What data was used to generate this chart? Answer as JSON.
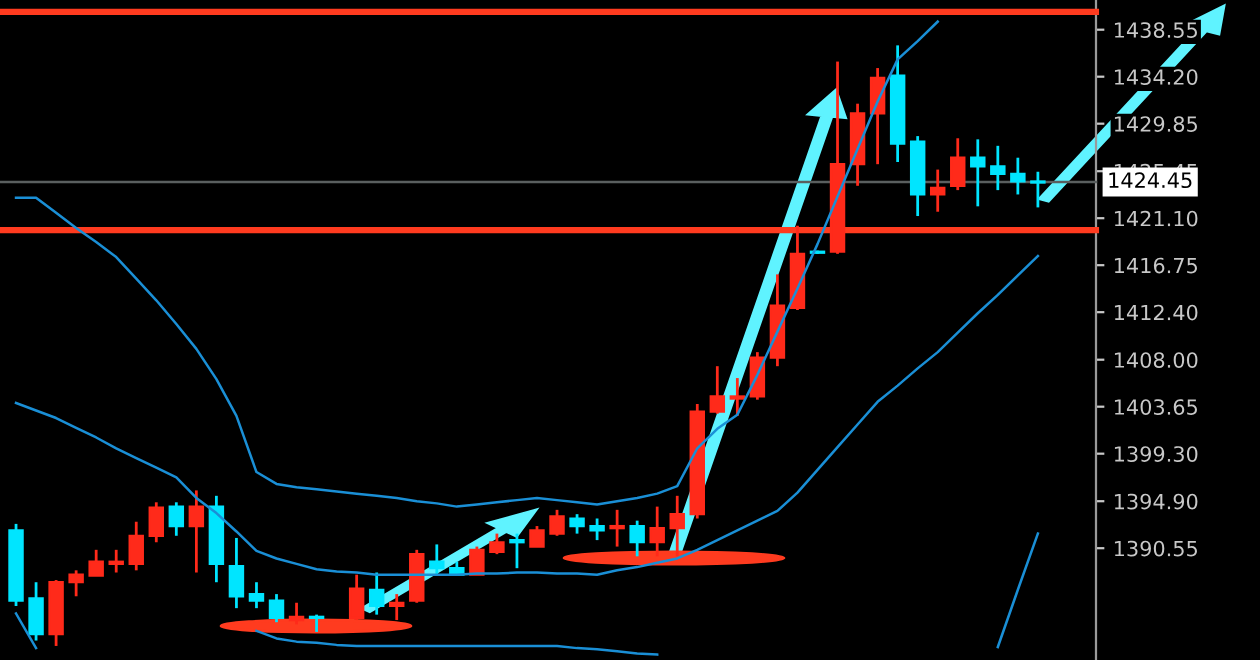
{
  "chart_data": {
    "type": "candlestick",
    "categories": [
      null,
      null,
      null,
      null,
      null,
      null,
      null,
      null,
      null,
      null,
      null,
      null,
      null,
      null,
      null,
      null,
      null,
      null,
      null,
      null,
      null,
      null,
      null,
      null,
      null,
      null,
      null,
      null,
      null,
      null,
      null,
      null,
      null,
      null,
      null,
      null,
      null,
      null,
      null,
      null,
      null,
      null,
      null,
      null,
      null,
      null,
      null,
      null,
      null,
      null,
      null,
      null
    ],
    "ohlc": [
      [
        1392.2,
        1392.8,
        1385.2,
        1385.7
      ],
      [
        1385.9,
        1387.4,
        1382.0,
        1382.6
      ],
      [
        1382.6,
        1387.6,
        1381.5,
        1387.4
      ],
      [
        1387.4,
        1388.5,
        1386.1,
        1388.1
      ],
      [
        1388.0,
        1390.4,
        1388.0,
        1389.3
      ],
      [
        1389.1,
        1390.4,
        1388.3,
        1389.3
      ],
      [
        1389.1,
        1393.0,
        1388.5,
        1391.7
      ],
      [
        1391.7,
        1394.8,
        1391.1,
        1394.3
      ],
      [
        1394.4,
        1394.8,
        1391.7,
        1392.6
      ],
      [
        1392.6,
        1395.9,
        1388.3,
        1394.4
      ],
      [
        1394.4,
        1395.4,
        1387.4,
        1389.1
      ],
      [
        1388.9,
        1391.5,
        1385.0,
        1386.1
      ],
      [
        1386.3,
        1387.4,
        1385.0,
        1385.7
      ],
      [
        1385.7,
        1386.3,
        1383.7,
        1384.1
      ],
      [
        1383.9,
        1385.5,
        1383.5,
        1384.2
      ],
      [
        1384.2,
        1384.4,
        1382.8,
        1384.1
      ],
      null,
      [
        1384.1,
        1388.1,
        1383.9,
        1386.8
      ],
      [
        1386.7,
        1388.3,
        1384.4,
        1385.2
      ],
      [
        1385.2,
        1386.3,
        1383.9,
        1385.5
      ],
      [
        1385.7,
        1390.4,
        1385.5,
        1390.0
      ],
      [
        1389.3,
        1390.9,
        1388.0,
        1388.7
      ],
      [
        1388.7,
        1389.3,
        1388.1,
        1388.1
      ],
      [
        1388.1,
        1390.7,
        1388.1,
        1390.4
      ],
      [
        1390.2,
        1391.9,
        1390.0,
        1391.1
      ],
      [
        1391.3,
        1391.9,
        1388.7,
        1391.1
      ],
      [
        1390.7,
        1392.6,
        1390.7,
        1392.2
      ],
      [
        1391.9,
        1394.1,
        1391.7,
        1393.5
      ],
      [
        1393.3,
        1393.7,
        1391.9,
        1392.6
      ],
      [
        1392.6,
        1393.3,
        1391.3,
        1392.2
      ],
      [
        1392.4,
        1394.1,
        1390.7,
        1392.6
      ],
      [
        1392.6,
        1393.1,
        1389.8,
        1391.1
      ],
      [
        1391.1,
        1394.4,
        1389.8,
        1392.4
      ],
      [
        1392.4,
        1395.4,
        1389.8,
        1393.7
      ],
      [
        1393.7,
        1403.9,
        1393.3,
        1403.2
      ],
      [
        1403.2,
        1407.4,
        1403.0,
        1404.6
      ],
      [
        1404.4,
        1406.3,
        1402.8,
        1404.6
      ],
      [
        1404.6,
        1408.7,
        1404.3,
        1408.2
      ],
      [
        1408.2,
        1415.9,
        1407.4,
        1413.0
      ],
      [
        1412.8,
        1420.4,
        1412.6,
        1417.8
      ],
      [
        1418.0,
        1418.1,
        1417.8,
        1417.9
      ],
      [
        1418.0,
        1435.6,
        1417.8,
        1426.1
      ],
      [
        1426.1,
        1431.7,
        1424.1,
        1430.8
      ],
      [
        1430.8,
        1435.0,
        1426.1,
        1434.1
      ],
      [
        1434.3,
        1437.1,
        1426.3,
        1428.0
      ],
      [
        1428.2,
        1428.7,
        1421.3,
        1423.3
      ],
      [
        1423.3,
        1425.6,
        1421.7,
        1423.9
      ],
      [
        1424.1,
        1428.5,
        1423.7,
        1426.7
      ],
      [
        1426.7,
        1428.4,
        1422.2,
        1425.9
      ],
      [
        1425.9,
        1427.8,
        1423.7,
        1425.2
      ],
      [
        1425.2,
        1426.7,
        1423.3,
        1424.5
      ],
      [
        1424.5,
        1425.4,
        1422.1,
        1424.4
      ]
    ],
    "colors": [
      "#00e5ff",
      "#00e5ff",
      "#ff2a1a",
      "#ff2a1a",
      "#ff2a1a",
      "#ff2a1a",
      "#ff2a1a",
      "#ff2a1a",
      "#00e5ff",
      "#ff2a1a",
      "#00e5ff",
      "#00e5ff",
      "#00e5ff",
      "#00e5ff",
      "#ff2a1a",
      "#00e5ff",
      null,
      "#ff2a1a",
      "#00e5ff",
      "#ff2a1a",
      "#ff2a1a",
      "#00e5ff",
      "#00e5ff",
      "#ff2a1a",
      "#ff2a1a",
      "#00e5ff",
      "#ff2a1a",
      "#ff2a1a",
      "#00e5ff",
      "#00e5ff",
      "#ff2a1a",
      "#00e5ff",
      "#ff2a1a",
      "#ff2a1a",
      "#ff2a1a",
      "#ff2a1a",
      "#ff2a1a",
      "#ff2a1a",
      "#ff2a1a",
      "#ff2a1a",
      "#00e5ff",
      "#ff2a1a",
      "#ff2a1a",
      "#ff2a1a",
      "#00e5ff",
      "#00e5ff",
      "#ff2a1a",
      "#ff2a1a",
      "#00e5ff",
      "#00e5ff",
      "#00e5ff",
      "#00e5ff"
    ],
    "series": [
      {
        "type": "line",
        "color": "#1a8fd6",
        "values": [
          1423.0,
          1423.0,
          1421.6,
          1420.2,
          1418.9,
          1417.5,
          1415.5,
          1413.5,
          1411.3,
          1409.0,
          1406.2,
          1402.8,
          1397.6,
          1396.5,
          1396.2,
          1396.0,
          1395.8,
          1395.6,
          1395.4,
          1395.2,
          1394.9,
          1394.7,
          1394.4,
          1394.6,
          1394.8,
          1395.0,
          1395.2,
          1395.0,
          1394.8,
          1394.6,
          1394.9,
          1395.2,
          1395.6,
          1396.3,
          1399.8,
          1401.6,
          1402.9,
          1406.6,
          1410.6,
          1414.6,
          1418.7,
          1423.1,
          1427.5,
          1431.9,
          1435.8,
          1437.5,
          1439.3,
          null,
          null,
          null,
          null,
          null
        ]
      },
      {
        "type": "line",
        "color": "#1a8fd6",
        "values": [
          1404.0,
          1403.3,
          1402.6,
          1401.7,
          1400.8,
          1399.8,
          1398.9,
          1398.0,
          1397.1,
          1395.2,
          1393.8,
          1392.1,
          1390.3,
          1389.6,
          1389.1,
          1388.6,
          1388.4,
          1388.3,
          1388.1,
          1388.1,
          1388.1,
          1388.1,
          1388.1,
          1388.2,
          1388.2,
          1388.3,
          1388.3,
          1388.2,
          1388.2,
          1388.1,
          1388.5,
          1388.8,
          1389.2,
          1389.6,
          1390.4,
          1391.3,
          1392.2,
          1393.1,
          1394.0,
          1395.7,
          1397.8,
          1399.9,
          1402.0,
          1404.1,
          1405.6,
          1407.2,
          1408.7,
          1410.5,
          1412.3,
          1414.0,
          1415.8,
          1417.6
        ]
      },
      {
        "type": "line",
        "color": "#1a8fd6",
        "values": [
          1384.5,
          1381.3,
          null,
          null,
          null,
          null,
          null,
          null,
          null,
          null,
          null,
          null,
          1382.9,
          1382.2,
          1381.9,
          1381.8,
          1381.6,
          1381.5,
          1381.5,
          1381.5,
          1381.5,
          1381.5,
          1381.5,
          1381.5,
          1381.5,
          1381.5,
          1381.5,
          1381.5,
          1381.3,
          1381.2,
          1381.0,
          1380.8,
          1380.7,
          null,
          null,
          null,
          null,
          null,
          null,
          null,
          null,
          null,
          null,
          null,
          null,
          null,
          null,
          null,
          null,
          1381.4,
          1386.7,
          1391.9
        ]
      }
    ],
    "ylim": [
      1380.2,
      1441.3
    ],
    "yticks": [
      1390.55,
      {
        "value": 1394.9,
        "label": "1394.90"
      },
      {
        "value": 1399.3,
        "label": "1399.30"
      },
      1403.65,
      {
        "value": 1408.0,
        "label": "1408.00"
      },
      {
        "value": 1412.4,
        "label": "1412.40"
      },
      1416.75,
      {
        "value": 1421.1,
        "label": "1421.10"
      },
      1425.45,
      1429.85,
      {
        "value": 1434.2,
        "label": "1434.20"
      },
      1438.55
    ],
    "tick_labels": "y",
    "ref_lines": [
      {
        "axis": "y",
        "value": 1440.2,
        "color": "#ff3b1f"
      },
      {
        "axis": "y",
        "value": 1420.0,
        "color": "#ff3b1f"
      },
      {
        "axis": "y",
        "value": 1424.45,
        "label": "1424.45",
        "color": "#5a5f5f"
      }
    ]
  }
}
